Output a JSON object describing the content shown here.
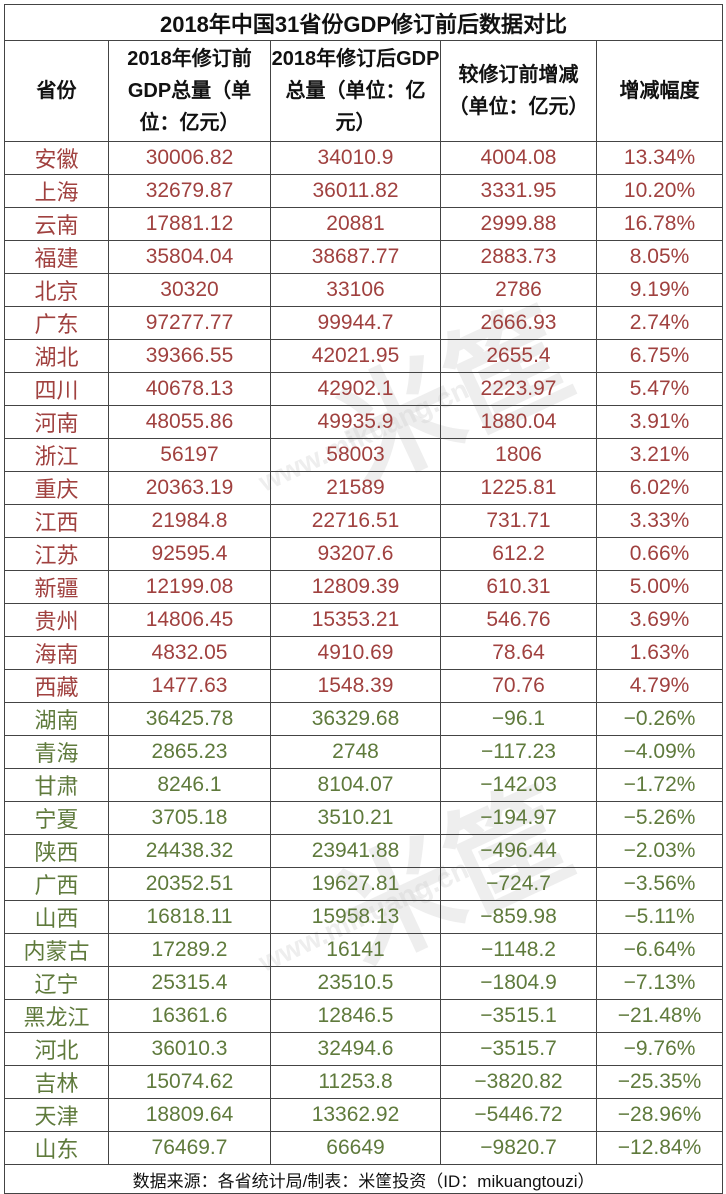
{
  "title": "2018年中国31省份GDP修订前后数据对比",
  "headers": [
    "省份",
    "2018年修订前GDP总量（单位：亿元）",
    "2018年修订后GDP总量（单位：亿元）",
    "较修订前增减（单位：亿元）",
    "增减幅度"
  ],
  "colors": {
    "increase": "#a0413f",
    "decrease": "#5f7a3c"
  },
  "rows": [
    {
      "prov": "安徽",
      "before": "30006.82",
      "after": "34010.9",
      "diff": "4004.08",
      "pct": "13.34%",
      "trend": "pos"
    },
    {
      "prov": "上海",
      "before": "32679.87",
      "after": "36011.82",
      "diff": "3331.95",
      "pct": "10.20%",
      "trend": "pos"
    },
    {
      "prov": "云南",
      "before": "17881.12",
      "after": "20881",
      "diff": "2999.88",
      "pct": "16.78%",
      "trend": "pos"
    },
    {
      "prov": "福建",
      "before": "35804.04",
      "after": "38687.77",
      "diff": "2883.73",
      "pct": "8.05%",
      "trend": "pos"
    },
    {
      "prov": "北京",
      "before": "30320",
      "after": "33106",
      "diff": "2786",
      "pct": "9.19%",
      "trend": "pos"
    },
    {
      "prov": "广东",
      "before": "97277.77",
      "after": "99944.7",
      "diff": "2666.93",
      "pct": "2.74%",
      "trend": "pos"
    },
    {
      "prov": "湖北",
      "before": "39366.55",
      "after": "42021.95",
      "diff": "2655.4",
      "pct": "6.75%",
      "trend": "pos"
    },
    {
      "prov": "四川",
      "before": "40678.13",
      "after": "42902.1",
      "diff": "2223.97",
      "pct": "5.47%",
      "trend": "pos"
    },
    {
      "prov": "河南",
      "before": "48055.86",
      "after": "49935.9",
      "diff": "1880.04",
      "pct": "3.91%",
      "trend": "pos"
    },
    {
      "prov": "浙江",
      "before": "56197",
      "after": "58003",
      "diff": "1806",
      "pct": "3.21%",
      "trend": "pos"
    },
    {
      "prov": "重庆",
      "before": "20363.19",
      "after": "21589",
      "diff": "1225.81",
      "pct": "6.02%",
      "trend": "pos"
    },
    {
      "prov": "江西",
      "before": "21984.8",
      "after": "22716.51",
      "diff": "731.71",
      "pct": "3.33%",
      "trend": "pos"
    },
    {
      "prov": "江苏",
      "before": "92595.4",
      "after": "93207.6",
      "diff": "612.2",
      "pct": "0.66%",
      "trend": "pos"
    },
    {
      "prov": "新疆",
      "before": "12199.08",
      "after": "12809.39",
      "diff": "610.31",
      "pct": "5.00%",
      "trend": "pos"
    },
    {
      "prov": "贵州",
      "before": "14806.45",
      "after": "15353.21",
      "diff": "546.76",
      "pct": "3.69%",
      "trend": "pos"
    },
    {
      "prov": "海南",
      "before": "4832.05",
      "after": "4910.69",
      "diff": "78.64",
      "pct": "1.63%",
      "trend": "pos"
    },
    {
      "prov": "西藏",
      "before": "1477.63",
      "after": "1548.39",
      "diff": "70.76",
      "pct": "4.79%",
      "trend": "pos"
    },
    {
      "prov": "湖南",
      "before": "36425.78",
      "after": "36329.68",
      "diff": "−96.1",
      "pct": "−0.26%",
      "trend": "neg"
    },
    {
      "prov": "青海",
      "before": "2865.23",
      "after": "2748",
      "diff": "−117.23",
      "pct": "−4.09%",
      "trend": "neg"
    },
    {
      "prov": "甘肃",
      "before": "8246.1",
      "after": "8104.07",
      "diff": "−142.03",
      "pct": "−1.72%",
      "trend": "neg"
    },
    {
      "prov": "宁夏",
      "before": "3705.18",
      "after": "3510.21",
      "diff": "−194.97",
      "pct": "−5.26%",
      "trend": "neg"
    },
    {
      "prov": "陕西",
      "before": "24438.32",
      "after": "23941.88",
      "diff": "−496.44",
      "pct": "−2.03%",
      "trend": "neg"
    },
    {
      "prov": "广西",
      "before": "20352.51",
      "after": "19627.81",
      "diff": "−724.7",
      "pct": "−3.56%",
      "trend": "neg"
    },
    {
      "prov": "山西",
      "before": "16818.11",
      "after": "15958.13",
      "diff": "−859.98",
      "pct": "−5.11%",
      "trend": "neg"
    },
    {
      "prov": "内蒙古",
      "before": "17289.2",
      "after": "16141",
      "diff": "−1148.2",
      "pct": "−6.64%",
      "trend": "neg"
    },
    {
      "prov": "辽宁",
      "before": "25315.4",
      "after": "23510.5",
      "diff": "−1804.9",
      "pct": "−7.13%",
      "trend": "neg"
    },
    {
      "prov": "黑龙江",
      "before": "16361.6",
      "after": "12846.5",
      "diff": "−3515.1",
      "pct": "−21.48%",
      "trend": "neg"
    },
    {
      "prov": "河北",
      "before": "36010.3",
      "after": "32494.6",
      "diff": "−3515.7",
      "pct": "−9.76%",
      "trend": "neg"
    },
    {
      "prov": "吉林",
      "before": "15074.62",
      "after": "11253.8",
      "diff": "−3820.82",
      "pct": "−25.35%",
      "trend": "neg"
    },
    {
      "prov": "天津",
      "before": "18809.64",
      "after": "13362.92",
      "diff": "−5446.72",
      "pct": "−28.96%",
      "trend": "neg"
    },
    {
      "prov": "山东",
      "before": "76469.7",
      "after": "66649",
      "diff": "−9820.7",
      "pct": "−12.84%",
      "trend": "neg"
    }
  ],
  "footer": "数据来源：各省统计局/制表：米筐投资（ID：mikuangtouzi）",
  "watermark": {
    "logo": "米筐",
    "domain": "www.mikuang.cn"
  }
}
